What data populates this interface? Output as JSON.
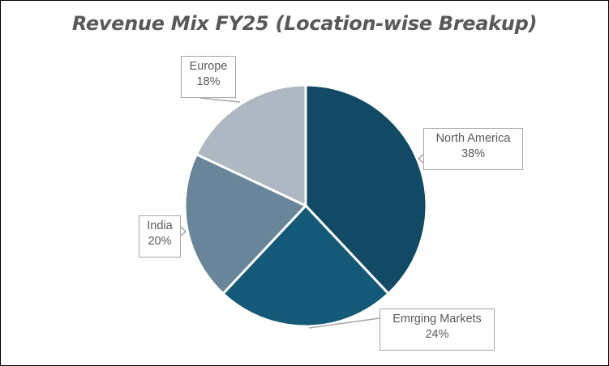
{
  "chart_data": {
    "type": "pie",
    "title": "Revenue Mix FY25 (Location-wise Breakup)",
    "categories": [
      "North America",
      "Emrging Markets",
      "India",
      "Europe"
    ],
    "values": [
      38,
      24,
      20,
      18
    ],
    "unit": "%",
    "colors": [
      "#124a66",
      "#145a78",
      "#688599",
      "#adb8c2"
    ],
    "labels": [
      {
        "name": "North America",
        "pct": "38%"
      },
      {
        "name": "Emrging Markets",
        "pct": "24%"
      },
      {
        "name": "India",
        "pct": "20%"
      },
      {
        "name": "Europe",
        "pct": "18%"
      }
    ],
    "legend": "none",
    "start_angle": "12 o'clock, clockwise"
  }
}
